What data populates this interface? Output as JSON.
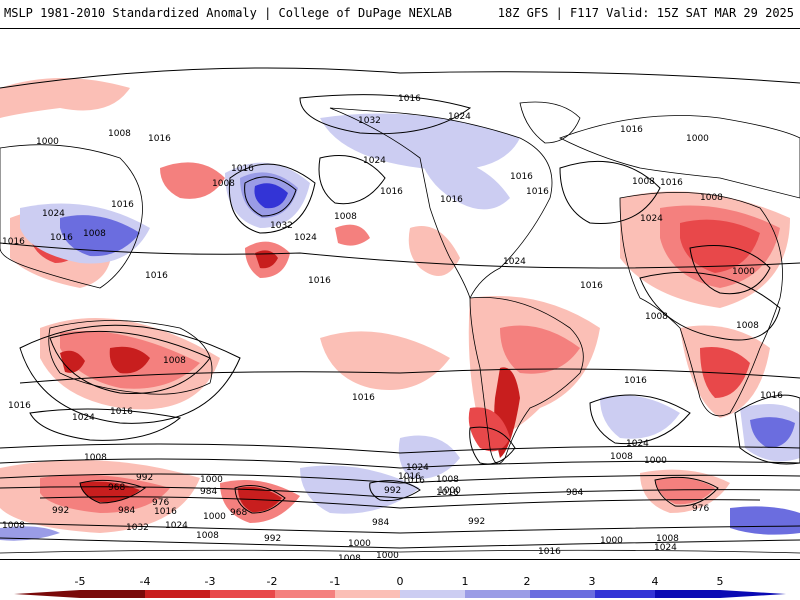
{
  "header": {
    "left": "MSLP 1981-2010 Standardized Anomaly | College of DuPage NEXLAB",
    "right": "18Z GFS | F117 Valid: 15Z SAT MAR 29 2025"
  },
  "colors": {
    "neg5": "#7a0a0a",
    "neg4": "#c81e1e",
    "neg3": "#e8484a",
    "neg2": "#f4807e",
    "neg1": "#fbbfb6",
    "zero": "#ffffff",
    "pos1": "#cccdf2",
    "pos2": "#9a9ce6",
    "pos3": "#6b6ddf",
    "pos4": "#3334d6",
    "pos5": "#0a0ab4"
  },
  "colorbar": {
    "labels": [
      "-5",
      "-4",
      "-3",
      "-2",
      "-1",
      "0",
      "1",
      "2",
      "3",
      "4",
      "5"
    ]
  },
  "isobar_labels": [
    "1016",
    "1008",
    "1000",
    "1016",
    "1032",
    "1024",
    "1016",
    "1000",
    "1016",
    "1008",
    "1016",
    "1024",
    "1016",
    "1032",
    "1024",
    "1008",
    "1016",
    "1016",
    "1016",
    "1024",
    "1016",
    "1008",
    "1008",
    "1016",
    "1016",
    "1008",
    "1024",
    "1016",
    "1008",
    "1000",
    "1016",
    "1016",
    "1024",
    "1016",
    "1016",
    "1008",
    "1024",
    "1016",
    "1016",
    "1016",
    "1016",
    "1024",
    "1008",
    "1000",
    "992",
    "984",
    "968",
    "976",
    "984",
    "992",
    "968",
    "1008",
    "1016",
    "1024",
    "1032",
    "1000",
    "992",
    "984",
    "1000",
    "1008",
    "1008",
    "1000",
    "992",
    "984",
    "976",
    "1008",
    "1024",
    "1016",
    "1008",
    "1000",
    "1016",
    "1024",
    "1000",
    "1008",
    "1016",
    "992",
    "1000",
    "1008"
  ]
}
